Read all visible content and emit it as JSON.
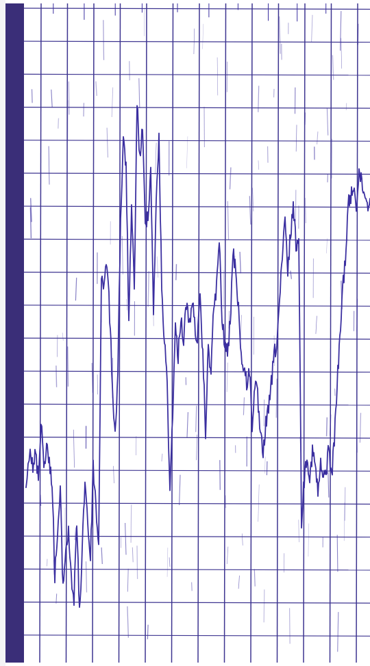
{
  "colors": {
    "paper": "#ffffff",
    "outer_margin": "#f4f4f6",
    "ink": "#3b2fa0",
    "grid": "#3d3490",
    "binding_strip": "#3a2e78"
  },
  "recording": {
    "vertical_grid_lines": 14,
    "horizontal_grid_lines": 20,
    "has_binding_strip": true
  }
}
